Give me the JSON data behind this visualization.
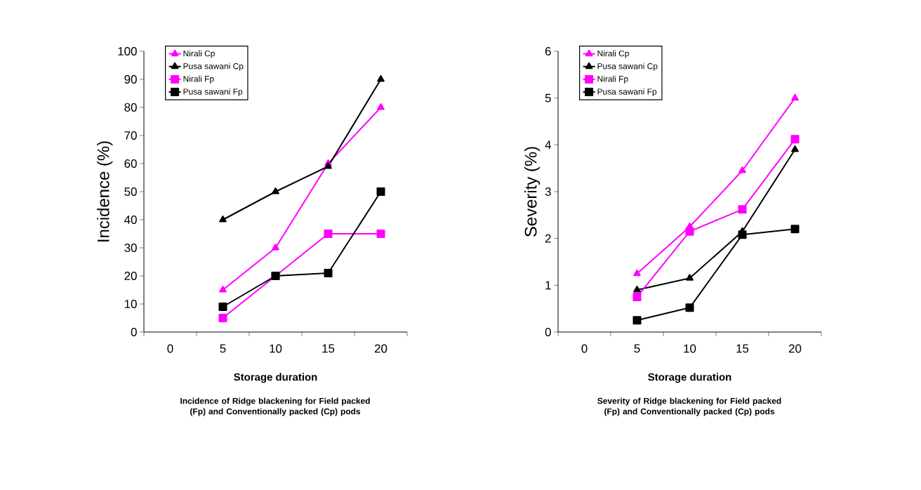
{
  "chart_data": [
    {
      "type": "line",
      "title": "Incidence of Ridge blackening for Field packed (Fp) and Conventionally packed (Cp) pods",
      "xlabel": "Storage duration",
      "ylabel": "Incidence (%)",
      "categories": [
        "0",
        "5",
        "10",
        "15",
        "20"
      ],
      "ylim": [
        0,
        100
      ],
      "yticks": [
        0,
        10,
        20,
        30,
        40,
        50,
        60,
        70,
        80,
        90,
        100
      ],
      "grid": false,
      "legend": "top left",
      "series": [
        {
          "name": "Nirali Cp",
          "color": "#ff00ff",
          "marker": "triangle",
          "values": [
            null,
            15,
            30,
            60,
            80
          ]
        },
        {
          "name": "Pusa sawani Cp",
          "color": "#000000",
          "marker": "triangle",
          "values": [
            null,
            40,
            50,
            59,
            90
          ]
        },
        {
          "name": "Nirali Fp",
          "color": "#ff00ff",
          "marker": "square",
          "values": [
            null,
            5,
            20,
            35,
            35
          ]
        },
        {
          "name": "Pusa sawani Fp",
          "color": "#000000",
          "marker": "square",
          "values": [
            null,
            9,
            20,
            21,
            50
          ]
        }
      ]
    },
    {
      "type": "line",
      "title": "Severity of Ridge blackening for Field packed (Fp) and Conventionally packed (Cp) pods",
      "xlabel": "Storage duration",
      "ylabel": "Severity (%)",
      "categories": [
        "0",
        "5",
        "10",
        "15",
        "20"
      ],
      "ylim": [
        0,
        6
      ],
      "yticks": [
        0,
        1,
        2,
        3,
        4,
        5,
        6
      ],
      "grid": false,
      "legend": "top left",
      "series": [
        {
          "name": "Nirali Cp",
          "color": "#ff00ff",
          "marker": "triangle",
          "values": [
            null,
            1.25,
            2.25,
            3.45,
            5.0
          ]
        },
        {
          "name": "Pusa sawani Cp",
          "color": "#000000",
          "marker": "triangle",
          "values": [
            null,
            0.9,
            1.15,
            2.15,
            3.9
          ]
        },
        {
          "name": "Nirali Fp",
          "color": "#ff00ff",
          "marker": "square",
          "values": [
            null,
            0.75,
            2.15,
            2.62,
            4.12
          ]
        },
        {
          "name": "Pusa sawani Fp",
          "color": "#000000",
          "marker": "square",
          "values": [
            null,
            0.25,
            0.52,
            2.08,
            2.2
          ]
        }
      ]
    }
  ]
}
